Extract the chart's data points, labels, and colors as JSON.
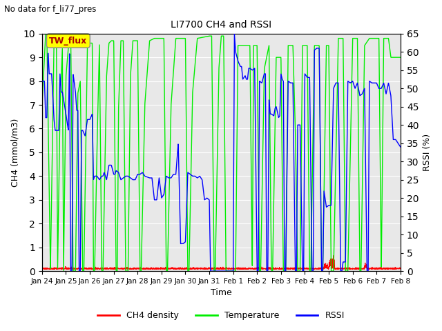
{
  "title": "LI7700 CH4 and RSSI",
  "suptitle": "No data for f_li77_pres",
  "xlabel": "Time",
  "ylabel_left": "CH4 (mmol/m3)",
  "ylabel_right": "RSSI (%)",
  "ylim_left": [
    0.0,
    10.0
  ],
  "ylim_right": [
    0,
    65
  ],
  "yticks_left": [
    0.0,
    1.0,
    2.0,
    3.0,
    4.0,
    5.0,
    6.0,
    7.0,
    8.0,
    9.0,
    10.0
  ],
  "yticks_right": [
    0,
    5,
    10,
    15,
    20,
    25,
    30,
    35,
    40,
    45,
    50,
    55,
    60,
    65
  ],
  "xtick_labels": [
    "Jan 24",
    "Jan 25",
    "Jan 26",
    "Jan 27",
    "Jan 28",
    "Jan 29",
    "Jan 30",
    "Jan 31",
    "Feb 1",
    "Feb 2",
    "Feb 3",
    "Feb 4",
    "Feb 5",
    "Feb 6",
    "Feb 7",
    "Feb 8"
  ],
  "annotation_box_text": "TW_flux",
  "annotation_box_color": "#ffff00",
  "annotation_text_color": "#aa0000",
  "ch4_color": "#ff0000",
  "temp_color": "#00ee00",
  "rssi_color": "#0000ff",
  "legend_labels": [
    "CH4 density",
    "Temperature",
    "RSSI"
  ],
  "background_color": "#e8e8e8",
  "grid_color": "#ffffff",
  "figsize": [
    6.4,
    4.8
  ],
  "dpi": 100
}
